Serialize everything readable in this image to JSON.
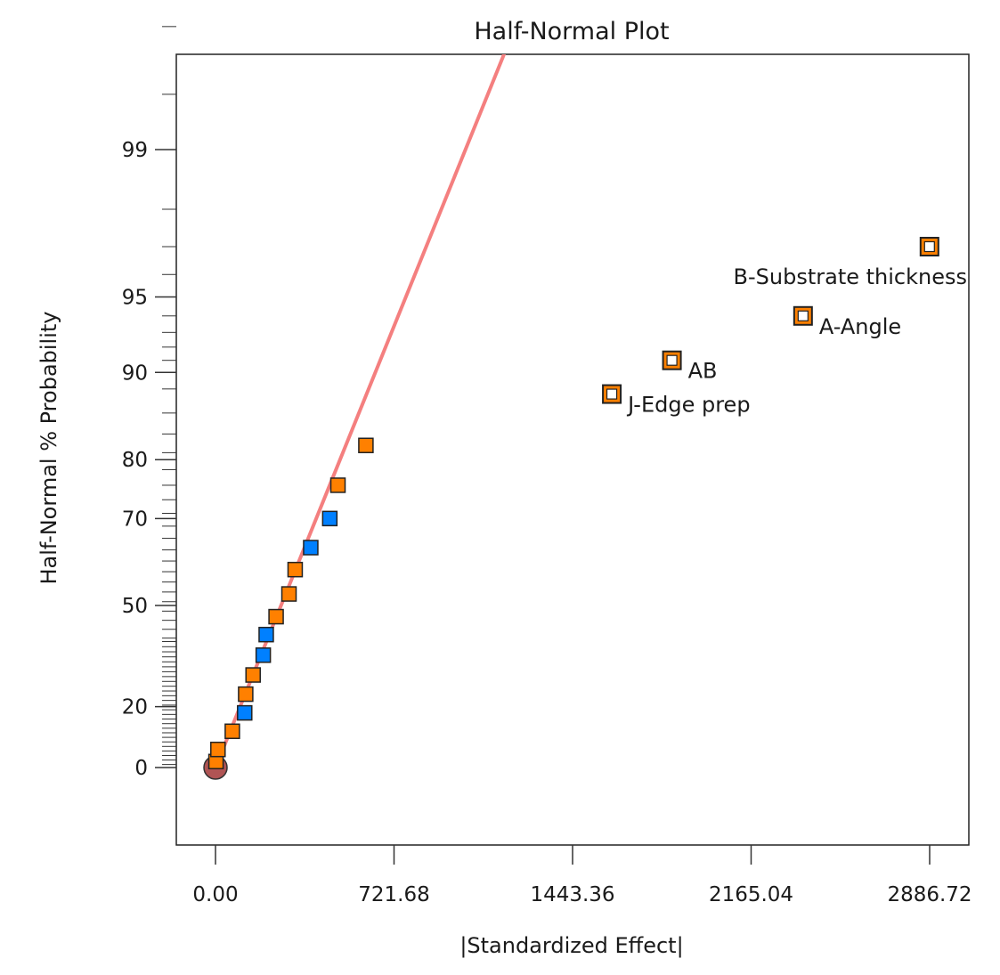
{
  "chart_data": {
    "type": "scatter",
    "title": "Half-Normal Plot",
    "xlabel": "|Standardized Effect|",
    "ylabel": "Half-Normal % Probability",
    "x_ticks": [
      0.0,
      721.68,
      1443.36,
      2165.04,
      2886.72
    ],
    "x_tick_labels": [
      "0.00",
      "721.68",
      "1443.36",
      "2165.04",
      "2886.72"
    ],
    "y_tick_labels": [
      "0",
      "20",
      "50",
      "70",
      "80",
      "90",
      "95",
      "99"
    ],
    "y_scale": "half-normal probability",
    "grid": false,
    "reference_line": {
      "color": "#f47f7f",
      "from": [
        0,
        0
      ],
      "to": [
        1290,
        99.9
      ]
    },
    "colors": {
      "positive": "#ff8000",
      "negative": "#0080ff",
      "error_origin": "#b05454",
      "selected_fill": "#ffffff"
    },
    "series": [
      {
        "name": "",
        "points": [
          {
            "x": 0,
            "y": 0,
            "color": "error_origin",
            "marker": "circle"
          },
          {
            "x": 2,
            "y": 2,
            "color": "positive"
          },
          {
            "x": 10,
            "y": 6,
            "color": "positive"
          },
          {
            "x": 68,
            "y": 12,
            "color": "positive"
          },
          {
            "x": 118,
            "y": 18,
            "color": "negative"
          },
          {
            "x": 122,
            "y": 24,
            "color": "positive"
          },
          {
            "x": 152,
            "y": 30,
            "color": "positive"
          },
          {
            "x": 193,
            "y": 36,
            "color": "negative"
          },
          {
            "x": 205,
            "y": 42,
            "color": "negative"
          },
          {
            "x": 245,
            "y": 47,
            "color": "positive"
          },
          {
            "x": 297,
            "y": 53,
            "color": "positive"
          },
          {
            "x": 322,
            "y": 59,
            "color": "positive"
          },
          {
            "x": 385,
            "y": 64,
            "color": "negative"
          },
          {
            "x": 462,
            "y": 70,
            "color": "negative"
          },
          {
            "x": 495,
            "y": 76,
            "color": "positive"
          },
          {
            "x": 608,
            "y": 82,
            "color": "positive"
          },
          {
            "x": 1602,
            "y": 88,
            "color": "positive",
            "selected": true,
            "label": "J-Edge prep"
          },
          {
            "x": 1845,
            "y": 91,
            "color": "positive",
            "selected": true,
            "label": "AB"
          },
          {
            "x": 2375,
            "y": 94,
            "color": "positive",
            "selected": true,
            "label": "A-Angle"
          },
          {
            "x": 2886,
            "y": 97,
            "color": "positive",
            "selected": true,
            "label": "B-Substrate thickness"
          }
        ]
      }
    ]
  }
}
